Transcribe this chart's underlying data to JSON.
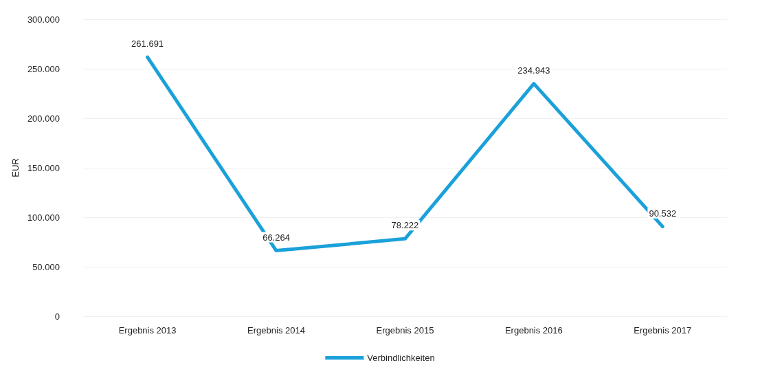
{
  "chart_data": {
    "type": "line",
    "ylabel": "EUR",
    "categories": [
      "Ergebnis 2013",
      "Ergebnis 2014",
      "Ergebnis 2015",
      "Ergebnis 2016",
      "Ergebnis 2017"
    ],
    "series": [
      {
        "name": "Verbindlichkeiten",
        "color": "#1ba1d9",
        "values": [
          261691,
          66264,
          78222,
          234943,
          90532
        ],
        "value_labels": [
          "261.691",
          "66.264",
          "78.222",
          "234.943",
          "90.532"
        ]
      }
    ],
    "ylim": [
      0,
      300000
    ],
    "yticks": [
      {
        "value": 0,
        "label": "0"
      },
      {
        "value": 50000,
        "label": "50.000"
      },
      {
        "value": 100000,
        "label": "100.000"
      },
      {
        "value": 150000,
        "label": "150.000"
      },
      {
        "value": 200000,
        "label": "200.000"
      },
      {
        "value": 250000,
        "label": "250.000"
      },
      {
        "value": 300000,
        "label": "300.000"
      }
    ],
    "grid": "y",
    "legend": "bottom",
    "marker": "none",
    "line_style": "solid"
  }
}
